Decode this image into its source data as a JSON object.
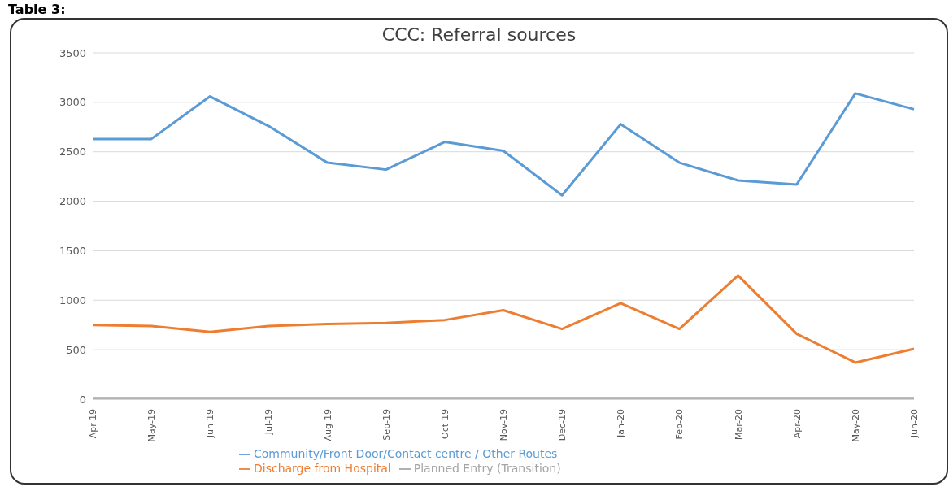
{
  "chart_data": {
    "type": "line",
    "title": "CCC: Referral sources",
    "annotations": [
      "Table 3:"
    ],
    "categories": [
      "Apr-19",
      "May-19",
      "Jun-19",
      "Jul-19",
      "Aug-19",
      "Sep-19",
      "Oct-19",
      "Nov-19",
      "Dec-19",
      "Jan-20",
      "Feb-20",
      "Mar-20",
      "Apr-20",
      "May-20",
      "Jun-20"
    ],
    "series": [
      {
        "name": "Community/Front Door/Contact centre / Other Routes",
        "color": "#5b9bd5",
        "values": [
          2630,
          2630,
          3060,
          2760,
          2390,
          2320,
          2600,
          2510,
          2060,
          2780,
          2390,
          2210,
          2170,
          3090,
          2930
        ]
      },
      {
        "name": "Discharge from Hospital",
        "color": "#ed7d31",
        "values": [
          750,
          740,
          680,
          740,
          760,
          770,
          800,
          900,
          710,
          970,
          710,
          1250,
          660,
          370,
          510
        ]
      },
      {
        "name": "Planned Entry (Transition)",
        "color": "#a5a5a5",
        "values": [
          10,
          10,
          10,
          10,
          10,
          10,
          10,
          10,
          10,
          10,
          10,
          10,
          10,
          10,
          10
        ]
      }
    ],
    "ylim": [
      0,
      3500
    ],
    "yticks": [
      0,
      500,
      1000,
      1500,
      2000,
      2500,
      3000,
      3500
    ],
    "grid": "y",
    "legend": "bottom",
    "marker": "none",
    "line_style": "solid"
  }
}
